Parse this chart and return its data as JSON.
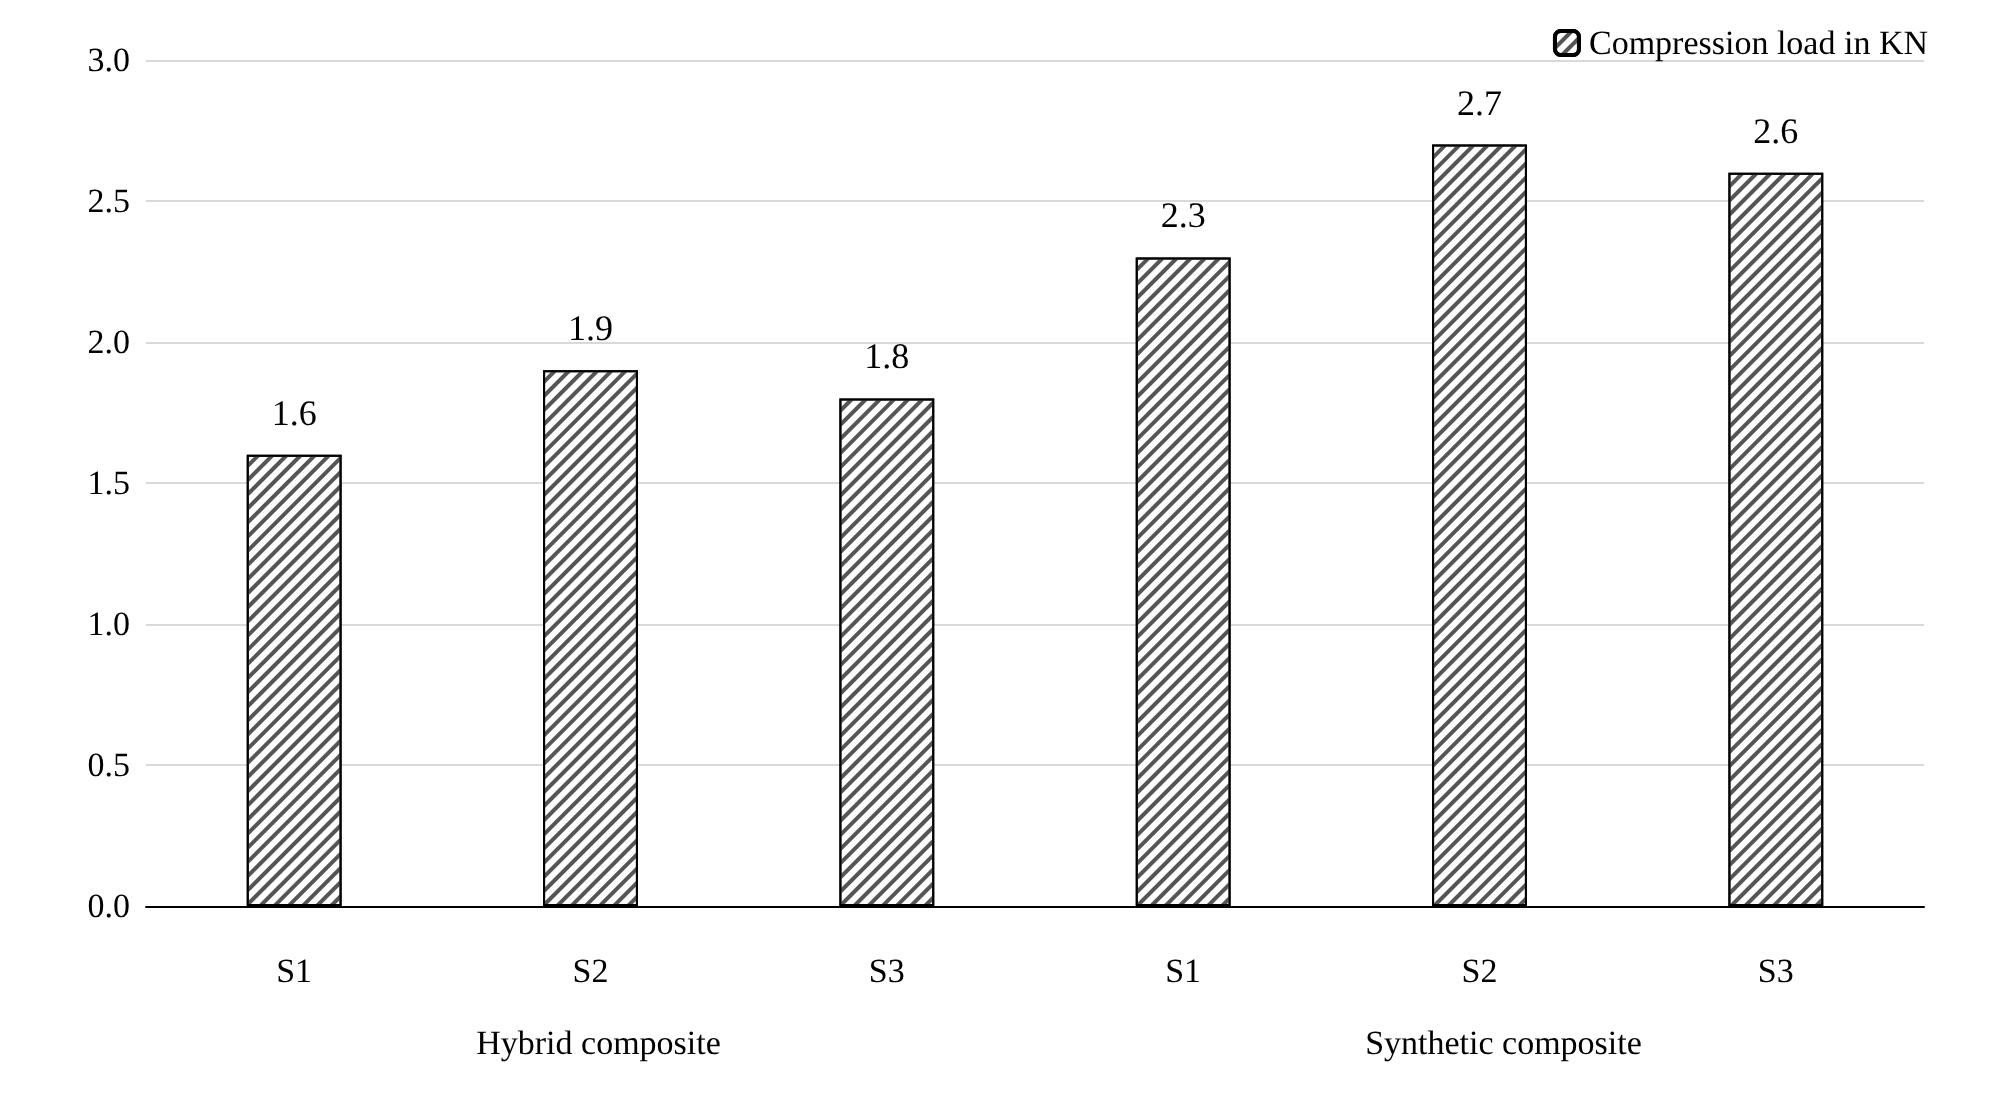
{
  "chart_data": {
    "type": "bar",
    "categories": [
      "S1",
      "S2",
      "S3",
      "S1",
      "S2",
      "S3"
    ],
    "series": [
      {
        "name": "Compression load in KN",
        "color": "#ffffff",
        "values": [
          1.6,
          1.9,
          1.8,
          2.3,
          2.7,
          2.6
        ]
      }
    ],
    "ylim": [
      0,
      3
    ],
    "yticks": [
      {
        "value": 0,
        "label": "0.0"
      },
      0.5,
      {
        "value": 1,
        "label": "1.0"
      },
      1.5,
      {
        "value": 2,
        "label": "2.0"
      },
      2.5,
      {
        "value": 3,
        "label": "3.0"
      }
    ],
    "grid": "y",
    "legend": "top right",
    "data_labels": true,
    "annotations": [
      "Hybrid composite",
      "Synthetic composite"
    ]
  }
}
